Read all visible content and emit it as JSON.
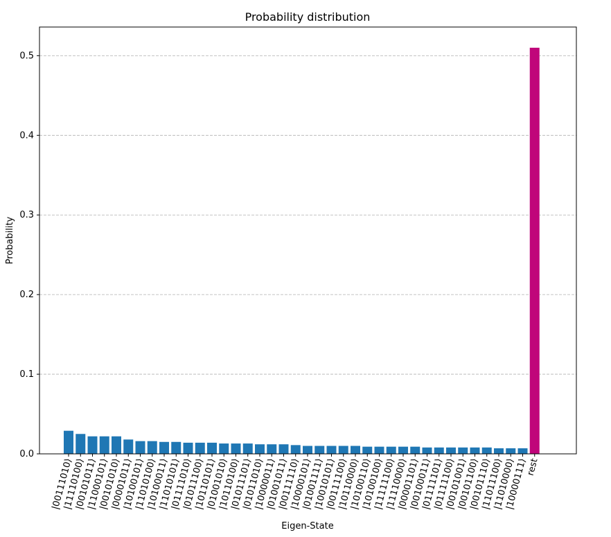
{
  "chart_data": {
    "type": "bar",
    "title": "Probability distribution",
    "x_label": "Eigen-State",
    "y_label": "Probability",
    "categories": [
      "|00111010⟩",
      "|11110100⟩",
      "|00101011⟩",
      "|11000101⟩",
      "|00101010⟩",
      "|00001011⟩",
      "|10100101⟩",
      "|11010100⟩",
      "|10100011⟩",
      "|11010101⟩",
      "|01111010⟩",
      "|01011100⟩",
      "|10110101⟩",
      "|01001010⟩",
      "|10110100⟩",
      "|01011101⟩",
      "|01011010⟩",
      "|10000011⟩",
      "|01001011⟩",
      "|00111110⟩",
      "|10000101⟩",
      "|01001111⟩",
      "|10010101⟩",
      "|00111100⟩",
      "|10110000⟩",
      "|10100110⟩",
      "|10100100⟩",
      "|11111100⟩",
      "|11110000⟩",
      "|00001101⟩",
      "|00100011⟩",
      "|01111101⟩",
      "|01111100⟩",
      "|00101001⟩",
      "|00101100⟩",
      "|00101110⟩",
      "|11011100⟩",
      "|11010000⟩",
      "|10000111⟩",
      "rest"
    ],
    "values": [
      0.029,
      0.025,
      0.022,
      0.022,
      0.022,
      0.018,
      0.016,
      0.016,
      0.015,
      0.015,
      0.014,
      0.014,
      0.014,
      0.013,
      0.013,
      0.013,
      0.012,
      0.012,
      0.012,
      0.011,
      0.01,
      0.01,
      0.01,
      0.01,
      0.01,
      0.009,
      0.009,
      0.009,
      0.009,
      0.009,
      0.008,
      0.008,
      0.008,
      0.008,
      0.008,
      0.008,
      0.007,
      0.007,
      0.007,
      0.51
    ],
    "colors": [
      "#1f77b4",
      "#1f77b4",
      "#1f77b4",
      "#1f77b4",
      "#1f77b4",
      "#1f77b4",
      "#1f77b4",
      "#1f77b4",
      "#1f77b4",
      "#1f77b4",
      "#1f77b4",
      "#1f77b4",
      "#1f77b4",
      "#1f77b4",
      "#1f77b4",
      "#1f77b4",
      "#1f77b4",
      "#1f77b4",
      "#1f77b4",
      "#1f77b4",
      "#1f77b4",
      "#1f77b4",
      "#1f77b4",
      "#1f77b4",
      "#1f77b4",
      "#1f77b4",
      "#1f77b4",
      "#1f77b4",
      "#1f77b4",
      "#1f77b4",
      "#1f77b4",
      "#1f77b4",
      "#1f77b4",
      "#1f77b4",
      "#1f77b4",
      "#1f77b4",
      "#1f77b4",
      "#1f77b4",
      "#1f77b4",
      "#c0067a"
    ],
    "ylim": [
      0,
      0.536
    ],
    "yticks": [
      {
        "value": 0,
        "label": "0.0"
      },
      0.1,
      0.2,
      0.3,
      0.4,
      0.5
    ],
    "grid": true
  }
}
